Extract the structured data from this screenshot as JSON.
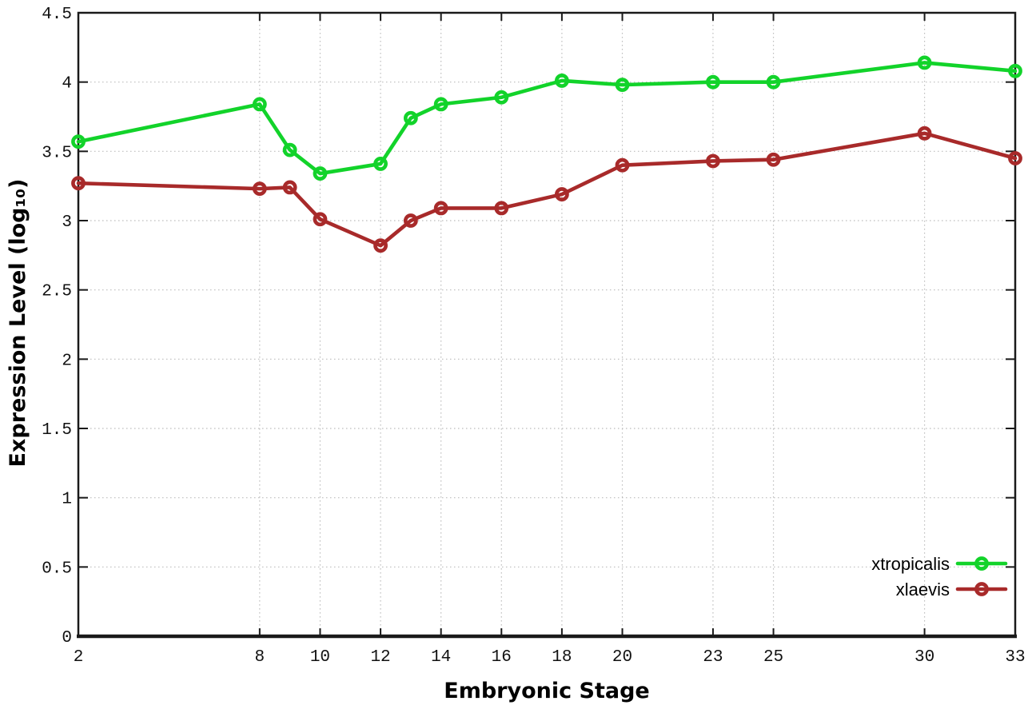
{
  "figure": {
    "background": "#ffffff",
    "axis_color": "#1a1a1a",
    "grid_color": "#bcbcbc"
  },
  "chart_data": {
    "type": "line",
    "title": "",
    "xlabel": "Embryonic Stage",
    "ylabel": "Expression Level (log₁₀)",
    "xlim": [
      2,
      33
    ],
    "ylim": [
      0,
      4.5
    ],
    "grid": true,
    "legend_position": "bottom-right",
    "marker": "open-circle",
    "x": [
      2,
      8,
      9,
      10,
      12,
      13,
      14,
      16,
      18,
      20,
      23,
      25,
      30,
      33
    ],
    "series": [
      {
        "name": "xtropicalis",
        "color": "#12d32a",
        "values": [
          3.57,
          3.84,
          3.51,
          3.34,
          3.41,
          3.74,
          3.84,
          3.89,
          4.01,
          3.98,
          4.0,
          4.0,
          4.14,
          4.08
        ]
      },
      {
        "name": "xlaevis",
        "color": "#a82a2a",
        "values": [
          3.27,
          3.23,
          3.24,
          3.01,
          2.82,
          3.0,
          3.09,
          3.09,
          3.19,
          3.4,
          3.43,
          3.44,
          3.63,
          3.45
        ]
      }
    ],
    "x_ticks": [
      2,
      8,
      10,
      12,
      14,
      16,
      18,
      20,
      23,
      25,
      30,
      33
    ],
    "x_tick_labels": [
      "2",
      "8",
      "10",
      "12",
      "14",
      "16",
      "18",
      "20",
      "23",
      "25",
      "30",
      "33"
    ],
    "y_ticks": [
      0,
      0.5,
      1,
      1.5,
      2,
      2.5,
      3,
      3.5,
      4,
      4.5
    ],
    "y_tick_labels": [
      "0",
      "0.5",
      "1",
      "1.5",
      "2",
      "2.5",
      "3",
      "3.5",
      "4",
      "4.5"
    ]
  }
}
